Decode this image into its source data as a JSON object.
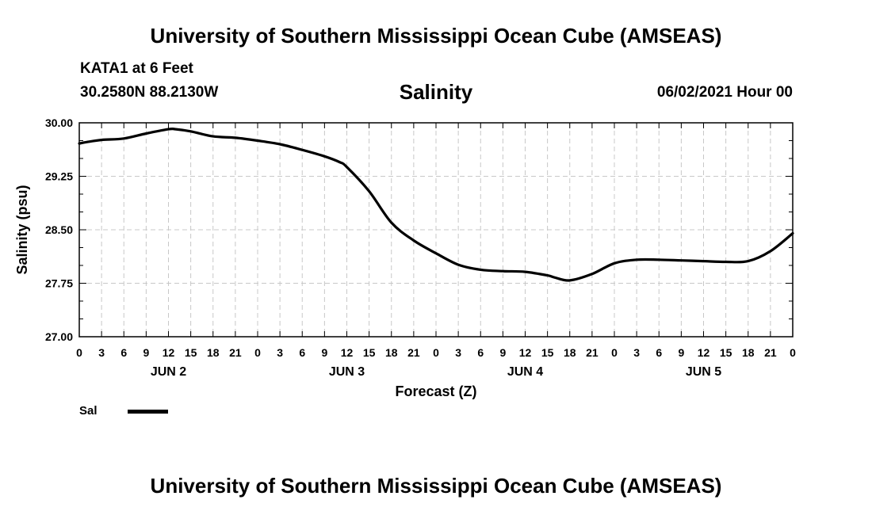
{
  "header": {
    "title": "University of Southern Mississippi Ocean Cube (AMSEAS)",
    "station": "KATA1 at 6 Feet",
    "coordinates": "30.2580N  88.2130W",
    "chart_title": "Salinity",
    "datetime": "06/02/2021 Hour 00"
  },
  "footer": {
    "title": "University of Southern Mississippi Ocean Cube (AMSEAS)"
  },
  "legend": {
    "label": "Sal"
  },
  "colors": {
    "line": "#000000",
    "grid": "#c8c8c8",
    "frame": "#000000"
  },
  "chart_data": {
    "type": "line",
    "title": "Salinity",
    "xlabel": "Forecast (Z)",
    "ylabel": "Salinity (psu)",
    "xlim": [
      0,
      96
    ],
    "ylim": [
      27.0,
      30.0
    ],
    "grid": true,
    "x_ticks": [
      0,
      3,
      6,
      9,
      12,
      15,
      18,
      21,
      24,
      27,
      30,
      33,
      36,
      39,
      42,
      45,
      48,
      51,
      54,
      57,
      60,
      63,
      66,
      69,
      72,
      75,
      78,
      81,
      84,
      87,
      90,
      93,
      96
    ],
    "x_tick_labels": [
      "0",
      "3",
      "6",
      "9",
      "12",
      "15",
      "18",
      "21",
      "0",
      "3",
      "6",
      "9",
      "12",
      "15",
      "18",
      "21",
      "0",
      "3",
      "6",
      "9",
      "12",
      "15",
      "18",
      "21",
      "0",
      "3",
      "6",
      "9",
      "12",
      "15",
      "18",
      "21",
      "0"
    ],
    "day_labels": [
      {
        "x": 12,
        "label": "JUN 2"
      },
      {
        "x": 36,
        "label": "JUN 3"
      },
      {
        "x": 60,
        "label": "JUN 4"
      },
      {
        "x": 84,
        "label": "JUN 5"
      }
    ],
    "y_ticks": [
      27.0,
      27.75,
      28.5,
      29.25,
      30.0
    ],
    "y_tick_labels": [
      "27.00",
      "27.75",
      "28.50",
      "29.25",
      "30.00"
    ],
    "y_minor_step": 0.25,
    "series": [
      {
        "name": "Sal",
        "x": [
          0,
          1,
          3,
          6,
          9,
          12,
          13,
          15,
          18,
          21,
          24,
          27,
          30,
          33,
          35,
          36,
          39,
          42,
          45,
          48,
          51,
          54,
          57,
          60,
          63,
          64,
          66,
          69,
          72,
          75,
          78,
          81,
          84,
          87,
          90,
          93,
          96
        ],
        "values": [
          29.71,
          29.73,
          29.76,
          29.78,
          29.85,
          29.91,
          29.91,
          29.88,
          29.81,
          29.79,
          29.75,
          29.7,
          29.62,
          29.53,
          29.45,
          29.38,
          29.04,
          28.6,
          28.35,
          28.17,
          28.01,
          27.94,
          27.92,
          27.91,
          27.86,
          27.83,
          27.79,
          27.88,
          28.03,
          28.08,
          28.08,
          28.07,
          28.06,
          28.05,
          28.06,
          28.2,
          28.45
        ]
      }
    ]
  }
}
